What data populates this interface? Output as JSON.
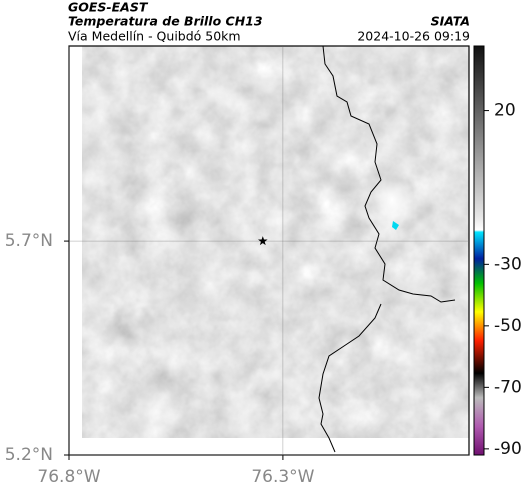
{
  "header": {
    "satellite": "GOES-EAST",
    "product": "Temperatura de Brillo CH13",
    "source": "SIATA",
    "region": "Vía Medellín - Quibdó 50km",
    "datetime": "2024-10-26 09:19"
  },
  "map": {
    "xlim": [
      -76.8,
      -75.865
    ],
    "ylim": [
      5.2,
      6.156
    ],
    "xticks": [
      {
        "value": -76.8,
        "label": "76.8°W"
      },
      {
        "value": -76.3,
        "label": "76.3°W"
      }
    ],
    "yticks": [
      {
        "value": 5.2,
        "label": "5.2°N"
      },
      {
        "value": 5.7,
        "label": "5.7°N"
      }
    ],
    "grid": true,
    "marker": {
      "lon": -76.347,
      "lat": 5.7
    }
  },
  "colorbar": {
    "range": [
      -92,
      41
    ],
    "ticks": [
      20,
      -30,
      -50,
      -70,
      -90
    ]
  }
}
